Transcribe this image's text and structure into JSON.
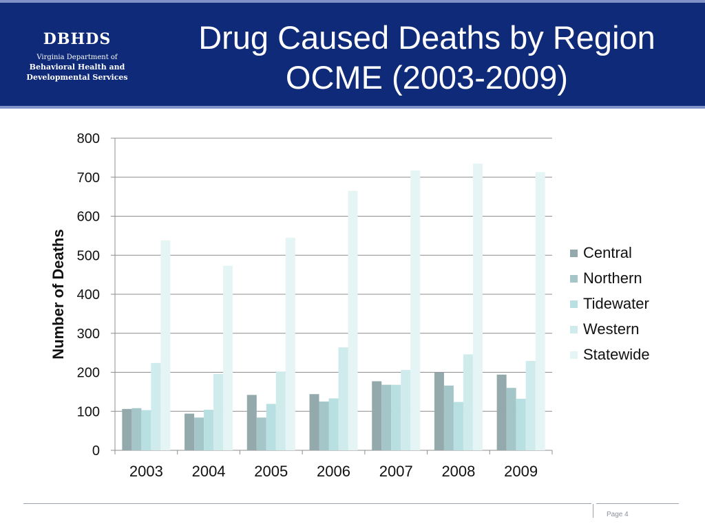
{
  "logo": {
    "name": "DBHDS",
    "line1": "Virginia Department of",
    "line2": "Behavioral Health and",
    "line3": "Developmental Services"
  },
  "title": {
    "line1": "Drug Caused Deaths by Region",
    "line2": "OCME (2003-2009)"
  },
  "footer": {
    "page": "Page 4"
  },
  "chart_data": {
    "type": "bar",
    "title": "",
    "xlabel": "",
    "ylabel": "Number of Deaths",
    "categories": [
      "2003",
      "2004",
      "2005",
      "2006",
      "2007",
      "2008",
      "2009"
    ],
    "ylim": [
      0,
      800
    ],
    "yticks": [
      0,
      100,
      200,
      300,
      400,
      500,
      600,
      700,
      800
    ],
    "grid": true,
    "legend_position": "right",
    "series": [
      {
        "name": "Central",
        "color": "#93a9ab",
        "values": [
          106,
          94,
          142,
          144,
          177,
          200,
          194
        ]
      },
      {
        "name": "Northern",
        "color": "#a5c6c8",
        "values": [
          108,
          84,
          84,
          125,
          168,
          166,
          160
        ]
      },
      {
        "name": "Tidewater",
        "color": "#b8e0e2",
        "values": [
          103,
          104,
          119,
          133,
          168,
          124,
          132
        ]
      },
      {
        "name": "Western",
        "color": "#d0ebec",
        "values": [
          224,
          196,
          202,
          264,
          206,
          246,
          229
        ]
      },
      {
        "name": "Statewide",
        "color": "#e5f4f4",
        "values": [
          538,
          473,
          545,
          665,
          717,
          735,
          713
        ]
      }
    ]
  }
}
